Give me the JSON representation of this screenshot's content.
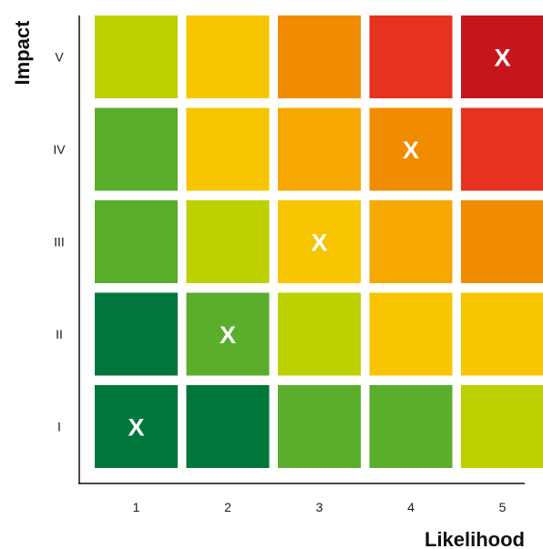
{
  "chart_data": {
    "type": "heatmap",
    "xlabel": "Likelihood",
    "ylabel": "Impact",
    "x_categories": [
      "1",
      "2",
      "3",
      "4",
      "5"
    ],
    "y_categories": [
      "I",
      "II",
      "III",
      "IV",
      "V"
    ],
    "palette": {
      "dark_green": "#00773A",
      "green": "#5BAD2C",
      "yellow_green": "#BDD000",
      "yellow": "#F6C500",
      "light_orange": "#F6A800",
      "orange": "#F18B00",
      "red": "#E6321E",
      "dark_red": "#C4161C"
    },
    "cells": [
      [
        "dark_green",
        "dark_green",
        "green",
        "green",
        "yellow_green"
      ],
      [
        "dark_green",
        "green",
        "yellow_green",
        "yellow",
        "yellow"
      ],
      [
        "green",
        "yellow_green",
        "yellow",
        "light_orange",
        "orange"
      ],
      [
        "green",
        "yellow",
        "light_orange",
        "orange",
        "red"
      ],
      [
        "yellow_green",
        "yellow",
        "orange",
        "red",
        "dark_red"
      ]
    ],
    "marks": [
      {
        "x": "1",
        "y": "I",
        "label": "X"
      },
      {
        "x": "2",
        "y": "II",
        "label": "X"
      },
      {
        "x": "3",
        "y": "III",
        "label": "X"
      },
      {
        "x": "4",
        "y": "IV",
        "label": "X"
      },
      {
        "x": "5",
        "y": "V",
        "label": "X"
      }
    ]
  }
}
